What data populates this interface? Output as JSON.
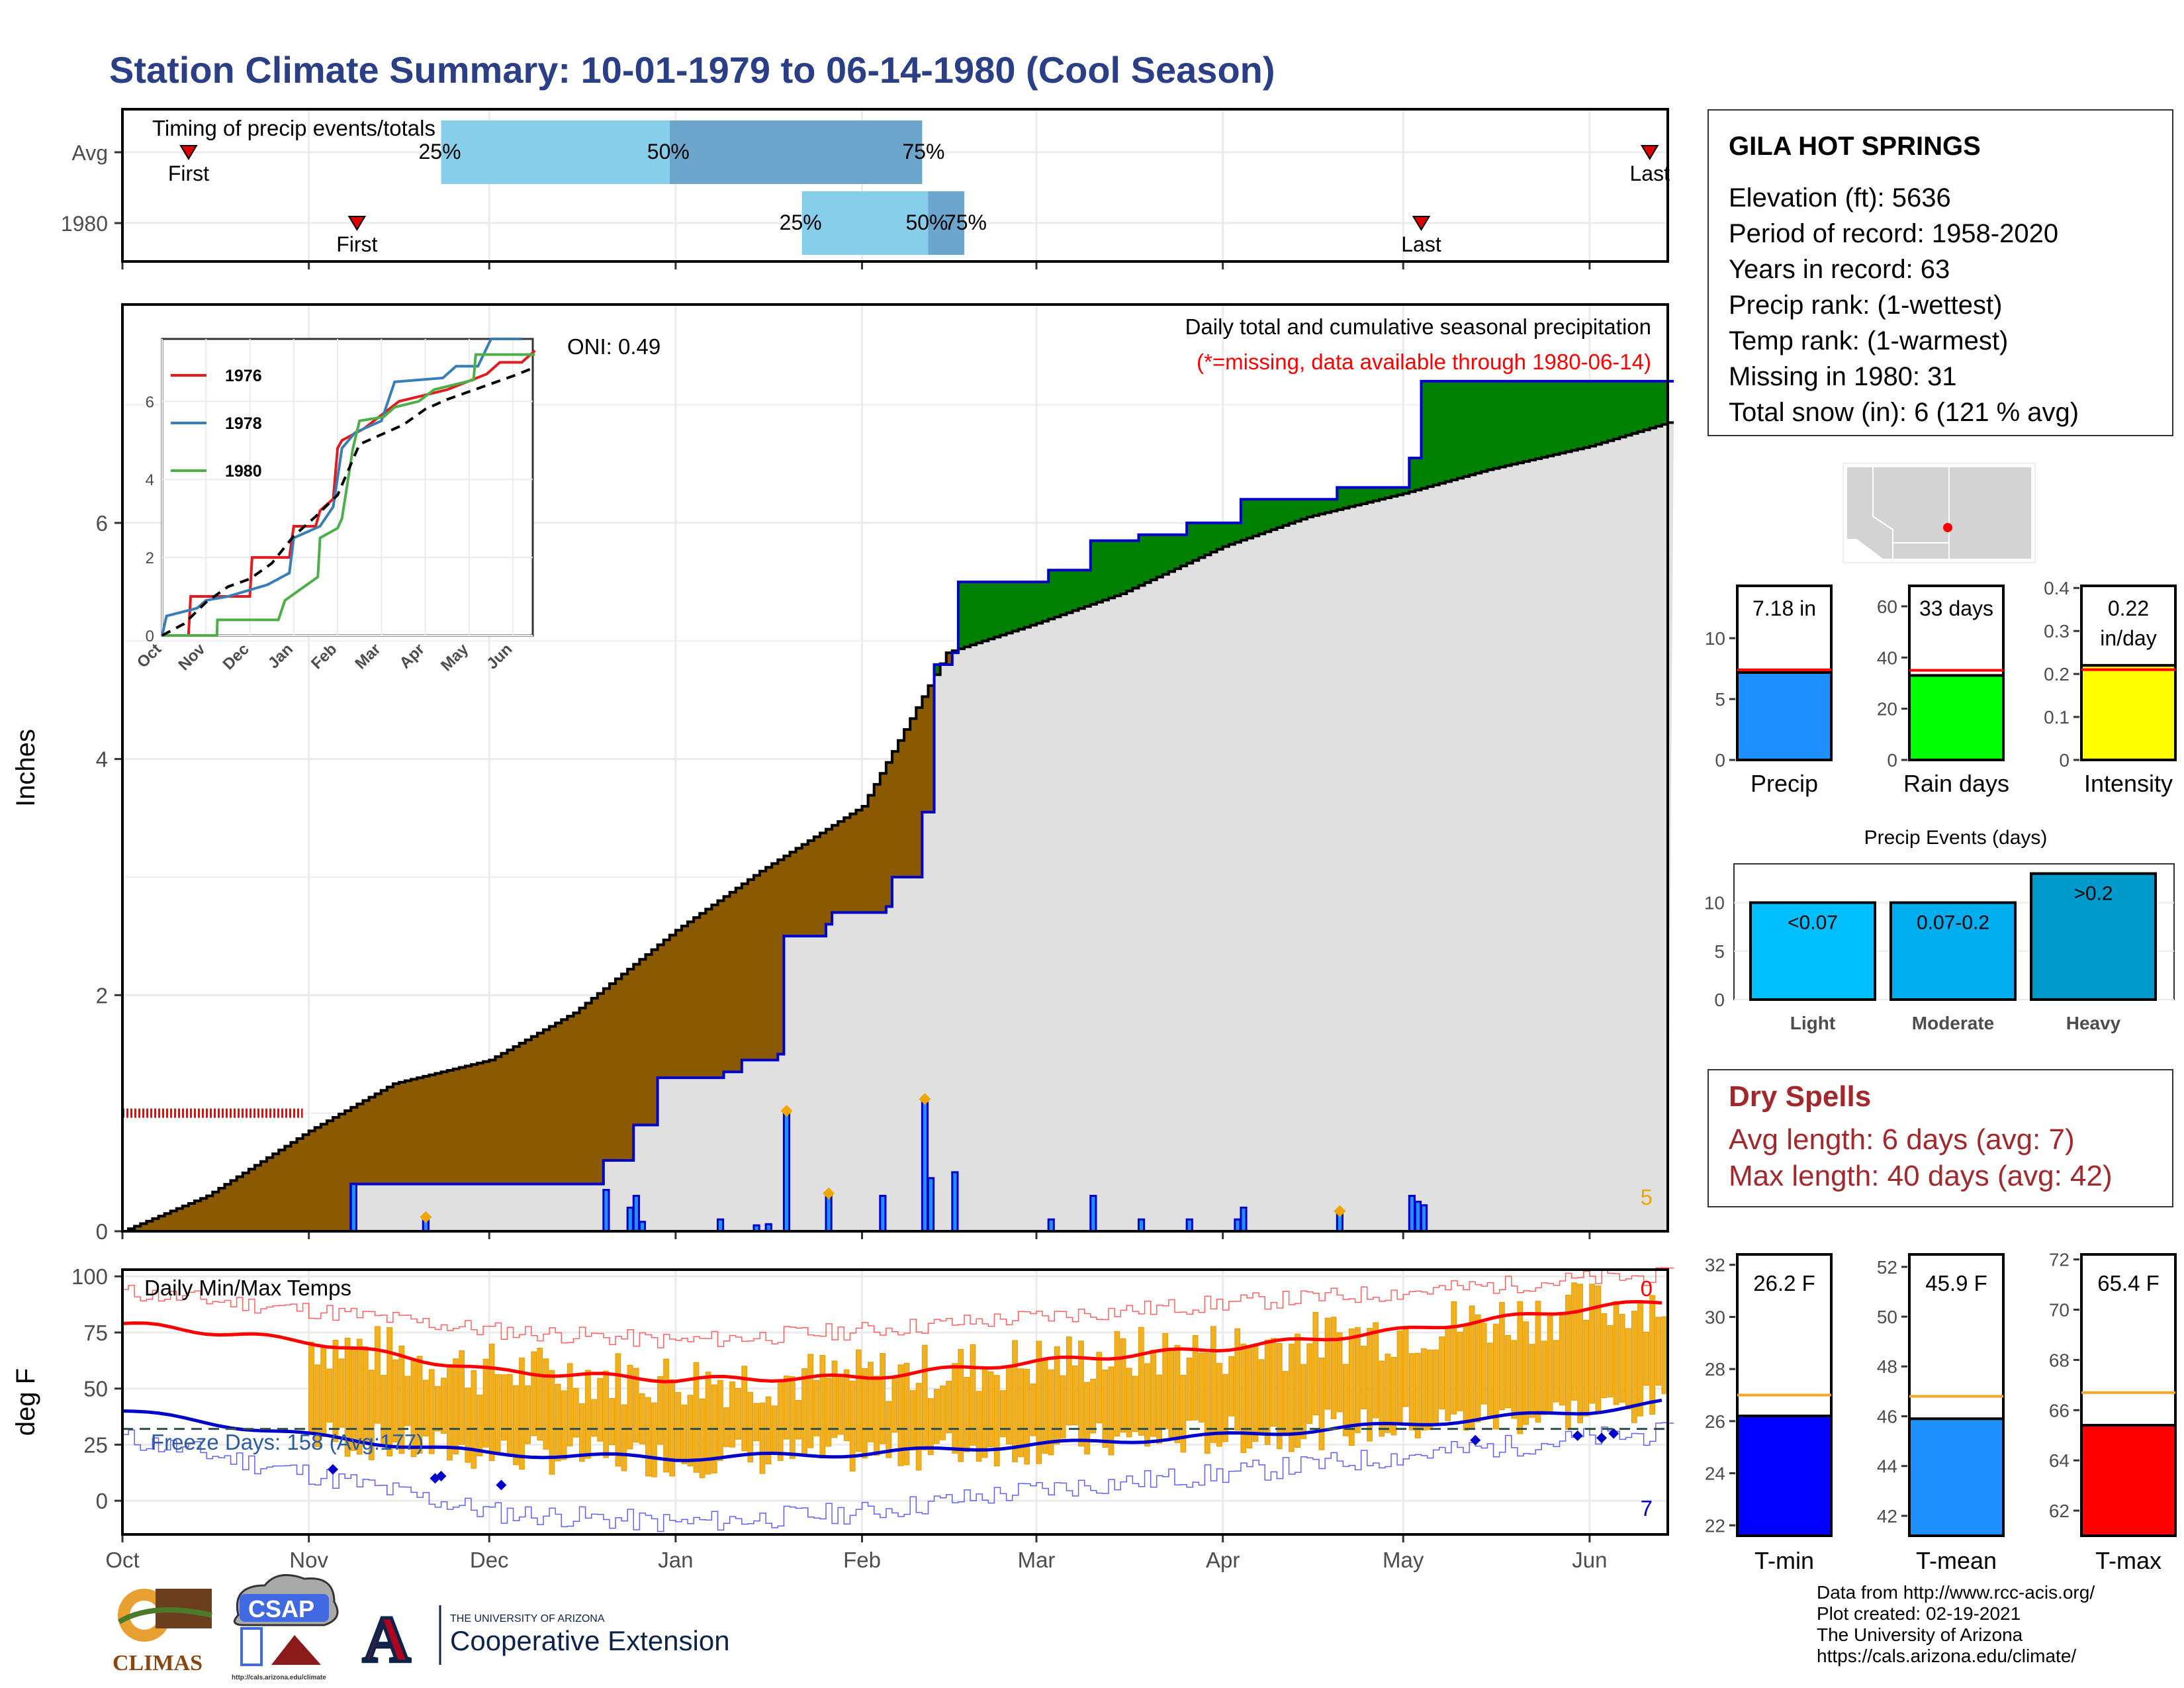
{
  "title": "Station Climate Summary: 10-01-1979 to 06-14-1980 (Cool Season)",
  "colors": {
    "title": "#2B3F87",
    "brown": "#8B5A00",
    "green": "#008000",
    "grey_fill": "#E0E0E0",
    "blue_line": "#0000CD",
    "orange": "#F0A500",
    "red": "#FF0000",
    "dry_spell": "#A3282B"
  },
  "station": {
    "name": "GILA HOT SPRINGS",
    "elevation": "Elevation (ft): 5636",
    "period": "Period of record: 1958-2020",
    "years": "Years in record: 63",
    "precip_rank": "Precip rank:  (1-wettest)",
    "temp_rank": "Temp rank:  (1-warmest)",
    "missing": "Missing in 1980: 31",
    "snow": "Total snow (in): 6 (121 % avg)"
  },
  "dry_spells": {
    "title": "Dry Spells",
    "avg": "Avg length: 6 days (avg: 7)",
    "max": "Max length: 40 days (avg: 42)"
  },
  "credits": {
    "line1": "Data from http://www.rcc-acis.org/",
    "line2": "Plot created: 02-19-2021",
    "line3": "The University of Arizona",
    "line4": "https://cals.arizona.edu/climate/"
  },
  "logos": {
    "climas": "CLIMAS",
    "csap": "CSAP",
    "csap_url": "http://cals.arizona.edu/climate",
    "ua_small": "THE UNIVERSITY OF ARIZONA",
    "ua_large": "Cooperative Extension",
    "ua_letter": "A"
  },
  "chart_data": [
    {
      "id": "timing",
      "type": "bar",
      "title": "Timing of precip events/totals",
      "categories": [
        "Avg",
        "1980"
      ],
      "x_months": [
        "Oct",
        "Nov",
        "Dec",
        "Jan",
        "Feb",
        "Mar",
        "Apr",
        "May",
        "Jun"
      ],
      "rows": [
        {
          "name": "Avg",
          "first": "1979-10-12",
          "p25": "1979-11-23",
          "p50": "1979-12-31",
          "p75": "1980-02-11",
          "last": "1980-06-11",
          "first_label": "First",
          "last_label": "Last",
          "p25_label": "25%",
          "p50_label": "50%",
          "p75_label": "75%"
        },
        {
          "name": "1980",
          "first": "1979-11-09",
          "p25": "1980-01-22",
          "p50": "1980-02-12",
          "p75": "1980-02-18",
          "last": "1980-05-04",
          "first_label": "First",
          "last_label": "Last",
          "p25_label": "25%",
          "p50_label": "50%",
          "p75_label": "75%"
        }
      ]
    },
    {
      "id": "precip",
      "type": "area",
      "title": "Daily total and cumulative seasonal precipitation",
      "subtitle": "(*=missing, data available through 1980-06-14)",
      "ylabel": "Inches",
      "ylim": [
        0,
        7.85
      ],
      "yticks": [
        0,
        2,
        4,
        6
      ],
      "x_months": [
        "Oct",
        "Nov",
        "Dec",
        "Jan",
        "Feb",
        "Mar",
        "Apr",
        "May",
        "Jun"
      ],
      "oni": "ONI: 0.49",
      "right_count": "5",
      "avg_cumulative": [
        [
          "1979-10-01",
          0
        ],
        [
          "1979-10-15",
          0.3
        ],
        [
          "1979-11-01",
          0.85
        ],
        [
          "1979-11-15",
          1.25
        ],
        [
          "1979-12-01",
          1.45
        ],
        [
          "1979-12-15",
          1.85
        ],
        [
          "1980-01-01",
          2.55
        ],
        [
          "1980-01-15",
          3.05
        ],
        [
          "1980-02-01",
          3.6
        ],
        [
          "1980-02-15",
          4.9
        ],
        [
          "1980-03-01",
          5.15
        ],
        [
          "1980-03-15",
          5.4
        ],
        [
          "1980-04-01",
          5.8
        ],
        [
          "1980-04-15",
          6.05
        ],
        [
          "1980-05-01",
          6.25
        ],
        [
          "1980-05-15",
          6.45
        ],
        [
          "1980-06-01",
          6.65
        ],
        [
          "1980-06-14",
          6.85
        ]
      ],
      "cumulative_1980": [
        [
          "1979-10-01",
          0
        ],
        [
          "1979-11-07",
          0
        ],
        [
          "1979-11-08",
          0.4
        ],
        [
          "1979-12-20",
          0.4
        ],
        [
          "1979-12-20",
          0.6
        ],
        [
          "1979-12-24",
          0.6
        ],
        [
          "1979-12-25",
          0.9
        ],
        [
          "1979-12-28",
          0.9
        ],
        [
          "1979-12-29",
          1.3
        ],
        [
          "1980-01-08",
          1.3
        ],
        [
          "1980-01-09",
          1.35
        ],
        [
          "1980-01-12",
          1.45
        ],
        [
          "1980-01-18",
          1.5
        ],
        [
          "1980-01-19",
          2.5
        ],
        [
          "1980-01-26",
          2.6
        ],
        [
          "1980-01-27",
          2.7
        ],
        [
          "1980-02-05",
          2.75
        ],
        [
          "1980-02-06",
          3.0
        ],
        [
          "1980-02-10",
          3.0
        ],
        [
          "1980-02-11",
          3.55
        ],
        [
          "1980-02-13",
          4.8
        ],
        [
          "1980-02-16",
          4.9
        ],
        [
          "1980-02-17",
          5.5
        ],
        [
          "1980-03-02",
          5.5
        ],
        [
          "1980-03-03",
          5.6
        ],
        [
          "1980-03-09",
          5.6
        ],
        [
          "1980-03-10",
          5.85
        ],
        [
          "1980-03-18",
          5.9
        ],
        [
          "1980-03-26",
          6.0
        ],
        [
          "1980-04-04",
          6.2
        ],
        [
          "1980-04-20",
          6.3
        ],
        [
          "1980-05-01",
          6.3
        ],
        [
          "1980-05-02",
          6.55
        ],
        [
          "1980-05-04",
          7.2
        ],
        [
          "1980-06-14",
          7.2
        ]
      ],
      "daily_precip": [
        [
          "1979-11-08",
          0.4
        ],
        [
          "1979-11-20",
          0.1
        ],
        [
          "1979-12-20",
          0.35
        ],
        [
          "1979-12-24",
          0.2
        ],
        [
          "1979-12-25",
          0.3
        ],
        [
          "1979-12-26",
          0.08
        ],
        [
          "1980-01-08",
          0.1
        ],
        [
          "1980-01-14",
          0.05
        ],
        [
          "1980-01-16",
          0.06
        ],
        [
          "1980-01-19",
          1.0
        ],
        [
          "1980-01-26",
          0.3
        ],
        [
          "1980-02-04",
          0.3
        ],
        [
          "1980-02-11",
          1.1
        ],
        [
          "1980-02-12",
          0.45
        ],
        [
          "1980-02-16",
          0.5
        ],
        [
          "1980-03-03",
          0.1
        ],
        [
          "1980-03-10",
          0.3
        ],
        [
          "1980-03-18",
          0.1
        ],
        [
          "1980-03-26",
          0.1
        ],
        [
          "1980-04-03",
          0.1
        ],
        [
          "1980-04-04",
          0.2
        ],
        [
          "1980-04-20",
          0.15
        ],
        [
          "1980-05-02",
          0.3
        ],
        [
          "1980-05-03",
          0.25
        ],
        [
          "1980-05-04",
          0.22
        ]
      ],
      "snow_markers": [
        [
          "1979-11-20",
          0.12
        ],
        [
          "1980-01-19",
          1.02
        ],
        [
          "1980-01-26",
          0.32
        ],
        [
          "1980-02-11",
          1.12
        ],
        [
          "1980-04-20",
          0.17
        ]
      ],
      "missing_days": [
        "1979-10-01",
        "1979-10-31"
      ]
    },
    {
      "id": "inset",
      "type": "line",
      "x_months": [
        "Oct",
        "Nov",
        "Dec",
        "Jan",
        "Feb",
        "Mar",
        "Apr",
        "May",
        "Jun"
      ],
      "yticks": [
        0,
        2,
        4,
        6
      ],
      "ylim": [
        0,
        7.6
      ],
      "series": [
        {
          "name": "1976",
          "color": "#E41A1C",
          "values": [
            [
              0,
              0
            ],
            [
              0.6,
              0
            ],
            [
              0.65,
              1.0
            ],
            [
              1.3,
              1.0
            ],
            [
              2.0,
              1.0
            ],
            [
              2.05,
              2.0
            ],
            [
              2.9,
              2.0
            ],
            [
              3.0,
              2.8
            ],
            [
              3.5,
              2.8
            ],
            [
              3.6,
              3.2
            ],
            [
              3.9,
              3.5
            ],
            [
              4.0,
              4.8
            ],
            [
              4.1,
              5.0
            ],
            [
              4.6,
              5.3
            ],
            [
              5.4,
              6.0
            ],
            [
              6.5,
              6.3
            ],
            [
              7.4,
              6.7
            ],
            [
              7.7,
              7.0
            ],
            [
              8.2,
              7.0
            ],
            [
              8.5,
              7.3
            ]
          ]
        },
        {
          "name": "1978",
          "color": "#377EB8",
          "values": [
            [
              0,
              0
            ],
            [
              0.1,
              0.5
            ],
            [
              0.8,
              0.7
            ],
            [
              1.0,
              0.9
            ],
            [
              1.5,
              1.0
            ],
            [
              2.4,
              1.3
            ],
            [
              2.9,
              1.6
            ],
            [
              3.0,
              2.5
            ],
            [
              3.2,
              2.6
            ],
            [
              3.6,
              2.8
            ],
            [
              3.9,
              3.3
            ],
            [
              4.1,
              4.8
            ],
            [
              4.4,
              5.2
            ],
            [
              5.0,
              5.5
            ],
            [
              5.3,
              6.5
            ],
            [
              6.4,
              6.6
            ],
            [
              6.7,
              6.9
            ],
            [
              7.2,
              6.9
            ],
            [
              7.5,
              7.6
            ],
            [
              8.2,
              7.6
            ]
          ]
        },
        {
          "name": "1980",
          "color": "#4DAF4A",
          "values": [
            [
              0,
              0
            ],
            [
              1.25,
              0
            ],
            [
              1.26,
              0.4
            ],
            [
              2.65,
              0.4
            ],
            [
              2.8,
              0.9
            ],
            [
              3.3,
              1.3
            ],
            [
              3.55,
              1.5
            ],
            [
              3.6,
              2.5
            ],
            [
              4.0,
              2.75
            ],
            [
              4.1,
              3.0
            ],
            [
              4.35,
              4.8
            ],
            [
              4.5,
              5.5
            ],
            [
              5.05,
              5.6
            ],
            [
              5.3,
              5.85
            ],
            [
              5.85,
              6.0
            ],
            [
              6.2,
              6.3
            ],
            [
              7.1,
              6.55
            ],
            [
              7.15,
              7.2
            ],
            [
              8.5,
              7.2
            ]
          ]
        },
        {
          "name": "Avg",
          "color": "#000000",
          "values": [
            [
              0,
              0
            ],
            [
              0.5,
              0.3
            ],
            [
              1.0,
              0.85
            ],
            [
              1.5,
              1.25
            ],
            [
              2.0,
              1.45
            ],
            [
              2.5,
              1.85
            ],
            [
              3.0,
              2.55
            ],
            [
              3.5,
              3.05
            ],
            [
              4.0,
              3.6
            ],
            [
              4.5,
              4.9
            ],
            [
              5.0,
              5.15
            ],
            [
              5.5,
              5.4
            ],
            [
              6.0,
              5.8
            ],
            [
              6.5,
              6.05
            ],
            [
              7.0,
              6.25
            ],
            [
              7.5,
              6.45
            ],
            [
              8.0,
              6.65
            ],
            [
              8.45,
              6.85
            ]
          ]
        }
      ]
    },
    {
      "id": "temps",
      "type": "bar",
      "title": "Daily Min/Max Temps",
      "ylabel": "deg F",
      "ylim": [
        -15,
        103
      ],
      "yticks": [
        0,
        25,
        50,
        75,
        100
      ],
      "x_months": [
        "Oct",
        "Nov",
        "Dec",
        "Jan",
        "Feb",
        "Mar",
        "Apr",
        "May",
        "Jun"
      ],
      "freeze_label": "Freeze Days: 158 (Avg:177)",
      "freeze_line": 32,
      "right_top": "0",
      "right_bottom": "7",
      "avg_max": [
        [
          "1979-10-01",
          79
        ],
        [
          "1979-11-01",
          71
        ],
        [
          "1979-12-01",
          58
        ],
        [
          "1980-01-01",
          54
        ],
        [
          "1980-02-01",
          55
        ],
        [
          "1980-03-01",
          62
        ],
        [
          "1980-04-01",
          68
        ],
        [
          "1980-05-01",
          76
        ],
        [
          "1980-06-01",
          86
        ],
        [
          "1980-06-14",
          89
        ]
      ],
      "avg_min": [
        [
          "1979-10-01",
          40
        ],
        [
          "1979-11-01",
          29
        ],
        [
          "1979-12-01",
          21
        ],
        [
          "1980-01-01",
          19
        ],
        [
          "1980-02-01",
          21
        ],
        [
          "1980-03-01",
          25
        ],
        [
          "1980-04-01",
          29
        ],
        [
          "1980-05-01",
          34
        ],
        [
          "1980-06-01",
          40
        ],
        [
          "1980-06-14",
          44
        ]
      ],
      "record_max": [
        [
          "1979-10-01",
          93
        ],
        [
          "1979-11-01",
          85
        ],
        [
          "1979-12-01",
          76
        ],
        [
          "1980-01-01",
          71
        ],
        [
          "1980-02-01",
          76
        ],
        [
          "1980-03-01",
          82
        ],
        [
          "1980-04-01",
          88
        ],
        [
          "1980-05-01",
          93
        ],
        [
          "1980-06-01",
          99
        ],
        [
          "1980-06-14",
          100
        ]
      ],
      "record_min": [
        [
          "1979-10-01",
          28
        ],
        [
          "1979-11-01",
          12
        ],
        [
          "1979-12-01",
          -5
        ],
        [
          "1980-01-01",
          -10
        ],
        [
          "1980-02-01",
          -5
        ],
        [
          "1980-03-01",
          5
        ],
        [
          "1980-04-01",
          12
        ],
        [
          "1980-05-01",
          20
        ],
        [
          "1980-06-01",
          28
        ],
        [
          "1980-06-14",
          30
        ]
      ],
      "obs_start": "1979-11-01",
      "record_low_markers": [
        [
          "1979-11-05",
          14
        ],
        [
          "1979-11-22",
          10
        ],
        [
          "1979-11-23",
          11
        ],
        [
          "1979-12-03",
          7
        ],
        [
          "1980-05-13",
          27
        ],
        [
          "1980-05-30",
          29
        ],
        [
          "1980-06-03",
          28
        ],
        [
          "1980-06-05",
          30
        ]
      ]
    },
    {
      "id": "precip_bars",
      "type": "bar",
      "categories": [
        "Precip",
        "Rain days",
        "Intensity"
      ],
      "values": [
        7.18,
        33,
        0.22
      ],
      "avg_lines": [
        7.4,
        35,
        0.21
      ],
      "labels": [
        "7.18 in",
        "33 days",
        "0.22 in/day"
      ],
      "ylims": [
        [
          0,
          14.3
        ],
        [
          0,
          68
        ],
        [
          0,
          0.405
        ]
      ],
      "yticks": [
        [
          0,
          5,
          10
        ],
        [
          0,
          20,
          40,
          60
        ],
        [
          0.0,
          0.1,
          0.2,
          0.3,
          0.4
        ]
      ],
      "colors": [
        "#1E90FF",
        "#00FF00",
        "#FFFF00"
      ]
    },
    {
      "id": "precip_events",
      "type": "bar",
      "title": "Precip Events (days)",
      "categories": [
        "Light",
        "Moderate",
        "Heavy"
      ],
      "values": [
        10,
        10,
        13
      ],
      "labels": [
        "<0.07",
        "0.07-0.2",
        ">0.2"
      ],
      "ylim": [
        0,
        14
      ],
      "yticks": [
        0,
        5,
        10
      ],
      "colors": [
        "#00BFFF",
        "#00AEEF",
        "#0099CC"
      ]
    },
    {
      "id": "temp_bars",
      "type": "bar",
      "categories": [
        "T-min",
        "T-mean",
        "T-max"
      ],
      "values": [
        26.2,
        45.9,
        65.4
      ],
      "avg_lines": [
        27.0,
        46.8,
        66.7
      ],
      "labels": [
        "26.2 F",
        "45.9 F",
        "65.4 F"
      ],
      "ylims": [
        [
          21.6,
          32.4
        ],
        [
          41.2,
          52.5
        ],
        [
          61.0,
          72.2
        ]
      ],
      "yticks": [
        [
          22,
          24,
          26,
          28,
          30,
          32
        ],
        [
          42,
          44,
          46,
          48,
          50,
          52
        ],
        [
          62,
          64,
          66,
          68,
          70,
          72
        ]
      ],
      "colors": [
        "#0000FF",
        "#1E90FF",
        "#FF0000"
      ]
    }
  ]
}
